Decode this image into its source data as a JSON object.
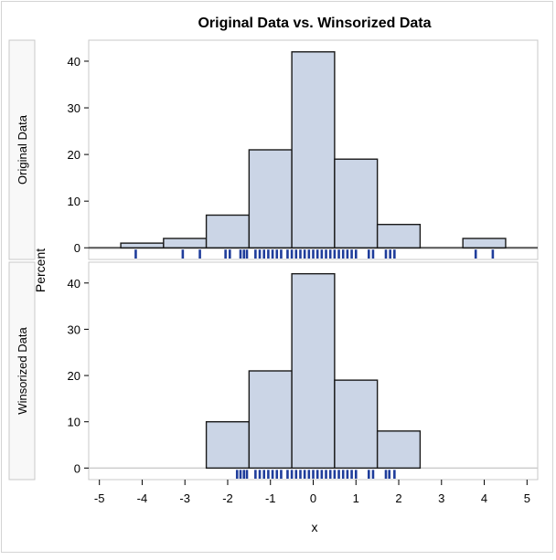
{
  "chart_data": {
    "type": "bar",
    "title": "Original Data vs. Winsorized Data",
    "xlabel": "x",
    "ylabel": "Percent",
    "xlim": [
      -5.25,
      5.25
    ],
    "ylim": [
      -2.5,
      44.5
    ],
    "x_ticks": [
      -5,
      -4,
      -3,
      -2,
      -1,
      0,
      1,
      2,
      3,
      4,
      5
    ],
    "y_ticks": [
      0,
      10,
      20,
      30,
      40
    ],
    "bin_width": 1,
    "colors": {
      "bar_fill": "#cbd5e6",
      "bar_edge": "#1a1a1a",
      "rug": "#1f3d9b",
      "panel_strip": "#f8f8f8",
      "frame": "#c8c8c8"
    },
    "panels": [
      {
        "name": "Original Data",
        "bars": [
          {
            "x": -4,
            "value": 1
          },
          {
            "x": -3,
            "value": 2
          },
          {
            "x": -2,
            "value": 7
          },
          {
            "x": -1,
            "value": 21
          },
          {
            "x": 0,
            "value": 42
          },
          {
            "x": 1,
            "value": 19
          },
          {
            "x": 2,
            "value": 5
          },
          {
            "x": 3,
            "value": 0
          },
          {
            "x": 4,
            "value": 2
          }
        ],
        "rug": [
          -4.15,
          -3.05,
          -2.65,
          -2.05,
          -1.95,
          -1.7,
          -1.62,
          -1.55,
          -1.35,
          -1.25,
          -1.15,
          -1.05,
          -0.95,
          -0.85,
          -0.75,
          -0.6,
          -0.5,
          -0.4,
          -0.3,
          -0.2,
          -0.1,
          0.0,
          0.1,
          0.2,
          0.3,
          0.4,
          0.5,
          0.6,
          0.7,
          0.8,
          0.9,
          1.0,
          1.3,
          1.4,
          1.7,
          1.8,
          1.9,
          3.8,
          4.2
        ]
      },
      {
        "name": "Winsorized Data",
        "bars": [
          {
            "x": -2,
            "value": 10
          },
          {
            "x": -1,
            "value": 21
          },
          {
            "x": 0,
            "value": 42
          },
          {
            "x": 1,
            "value": 19
          },
          {
            "x": 2,
            "value": 8
          }
        ],
        "rug": [
          -1.78,
          -1.7,
          -1.62,
          -1.55,
          -1.35,
          -1.25,
          -1.15,
          -1.05,
          -0.95,
          -0.85,
          -0.75,
          -0.6,
          -0.5,
          -0.4,
          -0.3,
          -0.2,
          -0.1,
          0.0,
          0.1,
          0.2,
          0.3,
          0.4,
          0.5,
          0.6,
          0.7,
          0.8,
          0.9,
          1.0,
          1.3,
          1.4,
          1.7,
          1.78,
          1.9
        ]
      }
    ]
  }
}
